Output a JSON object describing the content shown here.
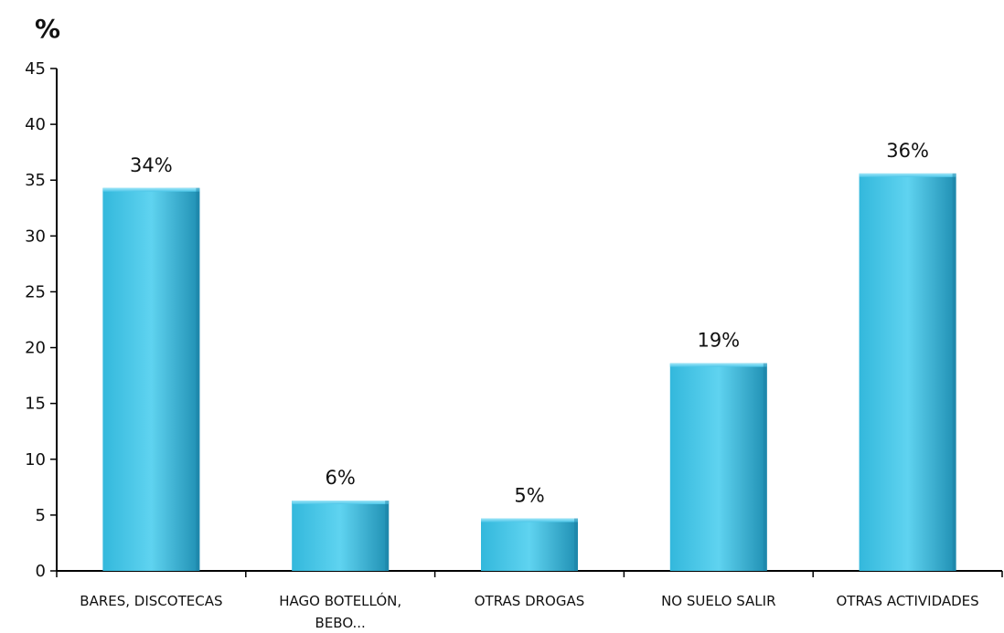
{
  "chart_data": {
    "type": "bar",
    "ylabel": "%",
    "ylim": [
      0,
      45
    ],
    "yticks": [
      0,
      5,
      10,
      15,
      20,
      25,
      30,
      35,
      40,
      45
    ],
    "grid": false,
    "legend": "none",
    "categories": [
      [
        "BARES, DISCOTECAS"
      ],
      [
        "HAGO BOTELLÓN,",
        "BEBO..."
      ],
      [
        "OTRAS DROGAS"
      ],
      [
        "NO SUELO SALIR"
      ],
      [
        "OTRAS ACTIVIDADES"
      ]
    ],
    "values": [
      34.3,
      6.3,
      4.7,
      18.6,
      35.6
    ],
    "data_labels": [
      "34%",
      "6%",
      "5%",
      "19%",
      "36%"
    ],
    "colors": {
      "bar_light": "#5fd3f0",
      "bar_mid": "#33b8dc",
      "bar_dark": "#1f8fb3",
      "axis": "#000000"
    }
  }
}
